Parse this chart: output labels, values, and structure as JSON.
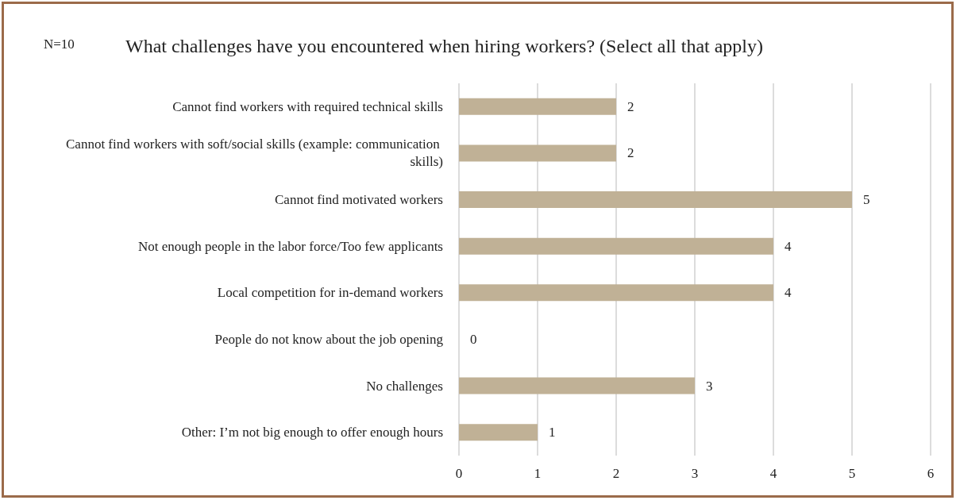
{
  "chart_data": {
    "type": "bar",
    "orientation": "horizontal",
    "title": "What challenges have you encountered when hiring workers? (Select all that apply)",
    "annotations": [
      "N=10"
    ],
    "categories": [
      "Cannot find workers with required technical skills",
      "Cannot find workers with soft/social skills (example: communication skills)",
      "Cannot find motivated workers",
      "Not enough people in the labor force/Too few applicants",
      "Local competition for in-demand workers",
      "People do not know about the job opening",
      "No challenges",
      "Other: I’m not big enough to offer enough hours"
    ],
    "values": [
      2,
      2,
      5,
      4,
      4,
      0,
      3,
      1
    ],
    "color": "#c0b196",
    "xlim": [
      0,
      6
    ],
    "xticks": [
      0,
      1,
      2,
      3,
      4,
      5,
      6
    ],
    "grid": "x",
    "data_labels": true
  }
}
